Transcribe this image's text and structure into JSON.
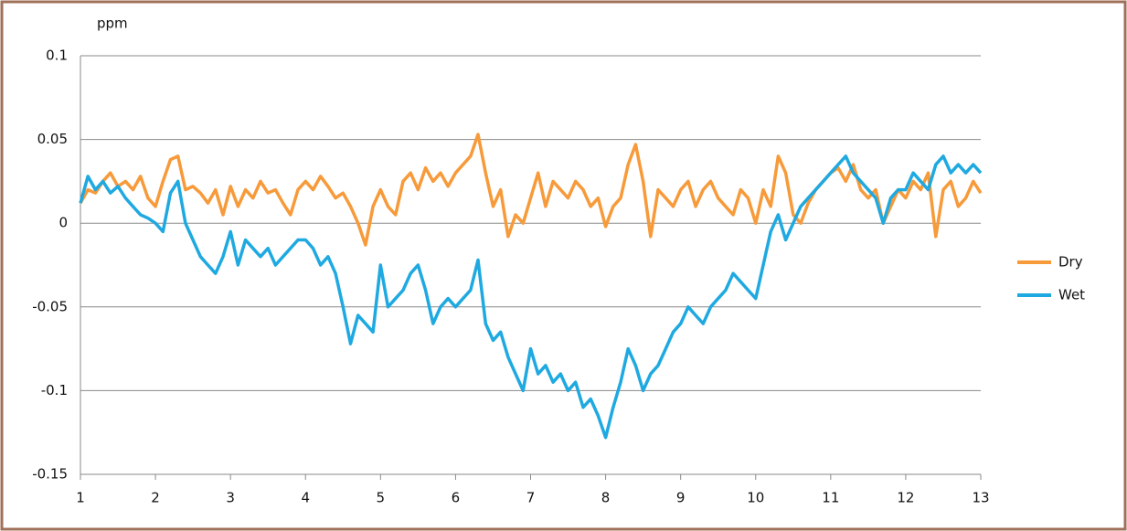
{
  "chart_data": {
    "type": "line",
    "y_label": "ppm",
    "x": [
      1.0,
      1.1,
      1.2,
      1.3,
      1.4,
      1.5,
      1.6,
      1.7,
      1.8,
      1.9,
      2.0,
      2.1,
      2.2,
      2.3,
      2.4,
      2.5,
      2.6,
      2.7,
      2.8,
      2.9,
      3.0,
      3.1,
      3.2,
      3.3,
      3.4,
      3.5,
      3.6,
      3.7,
      3.8,
      3.9,
      4.0,
      4.1,
      4.2,
      4.3,
      4.4,
      4.5,
      4.6,
      4.7,
      4.8,
      4.9,
      5.0,
      5.1,
      5.2,
      5.3,
      5.4,
      5.5,
      5.6,
      5.7,
      5.8,
      5.9,
      6.0,
      6.1,
      6.2,
      6.3,
      6.4,
      6.5,
      6.6,
      6.7,
      6.8,
      6.9,
      7.0,
      7.1,
      7.2,
      7.3,
      7.4,
      7.5,
      7.6,
      7.7,
      7.8,
      7.9,
      8.0,
      8.1,
      8.2,
      8.3,
      8.4,
      8.5,
      8.6,
      8.7,
      8.8,
      8.9,
      9.0,
      9.1,
      9.2,
      9.3,
      9.4,
      9.5,
      9.6,
      9.7,
      9.8,
      9.9,
      10.0,
      10.1,
      10.2,
      10.3,
      10.4,
      10.5,
      10.6,
      10.7,
      10.8,
      10.9,
      11.0,
      11.1,
      11.2,
      11.3,
      11.4,
      11.5,
      11.6,
      11.7,
      11.8,
      11.9,
      12.0,
      12.1,
      12.2,
      12.3,
      12.4,
      12.5,
      12.6,
      12.7,
      12.8,
      12.9,
      13.0
    ],
    "series": [
      {
        "name": "Dry",
        "color": "#f79a3a",
        "values": [
          0.012,
          0.02,
          0.018,
          0.025,
          0.03,
          0.022,
          0.025,
          0.02,
          0.028,
          0.015,
          0.01,
          0.025,
          0.038,
          0.04,
          0.02,
          0.022,
          0.018,
          0.012,
          0.02,
          0.005,
          0.022,
          0.01,
          0.02,
          0.015,
          0.025,
          0.018,
          0.02,
          0.012,
          0.005,
          0.02,
          0.025,
          0.02,
          0.028,
          0.022,
          0.015,
          0.018,
          0.01,
          0.0,
          -0.013,
          0.01,
          0.02,
          0.01,
          0.005,
          0.025,
          0.03,
          0.02,
          0.033,
          0.025,
          0.03,
          0.022,
          0.03,
          0.035,
          0.04,
          0.053,
          0.03,
          0.01,
          0.02,
          -0.008,
          0.005,
          0.0,
          0.015,
          0.03,
          0.01,
          0.025,
          0.02,
          0.015,
          0.025,
          0.02,
          0.01,
          0.015,
          -0.002,
          0.01,
          0.015,
          0.035,
          0.047,
          0.025,
          -0.008,
          0.02,
          0.015,
          0.01,
          0.02,
          0.025,
          0.01,
          0.02,
          0.025,
          0.015,
          0.01,
          0.005,
          0.02,
          0.015,
          0.0,
          0.02,
          0.01,
          0.04,
          0.03,
          0.005,
          0.0,
          0.012,
          0.02,
          0.025,
          0.03,
          0.033,
          0.025,
          0.035,
          0.02,
          0.015,
          0.02,
          0.0,
          0.01,
          0.02,
          0.015,
          0.025,
          0.02,
          0.03,
          -0.008,
          0.02,
          0.025,
          0.01,
          0.015,
          0.025,
          0.018
        ]
      },
      {
        "name": "Wet",
        "color": "#1fa9e1",
        "values": [
          0.012,
          0.028,
          0.02,
          0.025,
          0.018,
          0.022,
          0.015,
          0.01,
          0.005,
          0.003,
          0.0,
          -0.005,
          0.018,
          0.025,
          0.0,
          -0.01,
          -0.02,
          -0.025,
          -0.03,
          -0.02,
          -0.005,
          -0.025,
          -0.01,
          -0.015,
          -0.02,
          -0.015,
          -0.025,
          -0.02,
          -0.015,
          -0.01,
          -0.01,
          -0.015,
          -0.025,
          -0.02,
          -0.03,
          -0.05,
          -0.072,
          -0.055,
          -0.06,
          -0.065,
          -0.025,
          -0.05,
          -0.045,
          -0.04,
          -0.03,
          -0.025,
          -0.04,
          -0.06,
          -0.05,
          -0.045,
          -0.05,
          -0.045,
          -0.04,
          -0.022,
          -0.06,
          -0.07,
          -0.065,
          -0.08,
          -0.09,
          -0.1,
          -0.075,
          -0.09,
          -0.085,
          -0.095,
          -0.09,
          -0.1,
          -0.095,
          -0.11,
          -0.105,
          -0.115,
          -0.128,
          -0.11,
          -0.095,
          -0.075,
          -0.085,
          -0.1,
          -0.09,
          -0.085,
          -0.075,
          -0.065,
          -0.06,
          -0.05,
          -0.055,
          -0.06,
          -0.05,
          -0.045,
          -0.04,
          -0.03,
          -0.035,
          -0.04,
          -0.045,
          -0.025,
          -0.005,
          0.005,
          -0.01,
          0.0,
          0.01,
          0.015,
          0.02,
          0.025,
          0.03,
          0.035,
          0.04,
          0.03,
          0.025,
          0.02,
          0.015,
          0.0,
          0.015,
          0.02,
          0.02,
          0.03,
          0.025,
          0.02,
          0.035,
          0.04,
          0.03,
          0.035,
          0.03,
          0.035,
          0.03
        ]
      }
    ],
    "xlim": [
      1,
      13
    ],
    "xticks": [
      1,
      2,
      3,
      4,
      5,
      6,
      7,
      8,
      9,
      10,
      11,
      12,
      13
    ],
    "ylim": [
      -0.15,
      0.1
    ],
    "yticks": [
      -0.15,
      -0.1,
      -0.05,
      0,
      0.05,
      0.1
    ],
    "grid": true,
    "legend": "right"
  }
}
